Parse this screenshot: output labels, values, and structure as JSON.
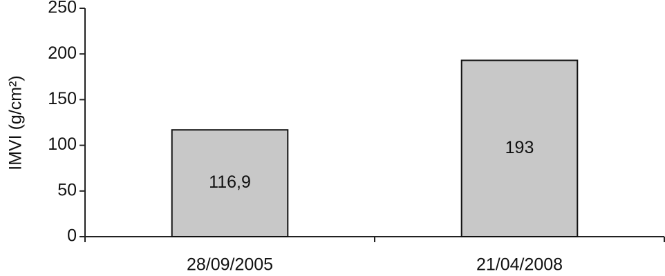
{
  "chart_data": {
    "type": "bar",
    "y_label": "IMVI (g/cm²)",
    "categories": [
      "28/09/2005",
      "21/04/2008"
    ],
    "values": [
      116.9,
      193
    ],
    "value_labels": [
      "116,9",
      "193"
    ],
    "color": "#c8c8c8",
    "ylim": [
      0,
      250
    ],
    "yticks": [
      0,
      50,
      100,
      150,
      200,
      250
    ],
    "grid": false
  }
}
